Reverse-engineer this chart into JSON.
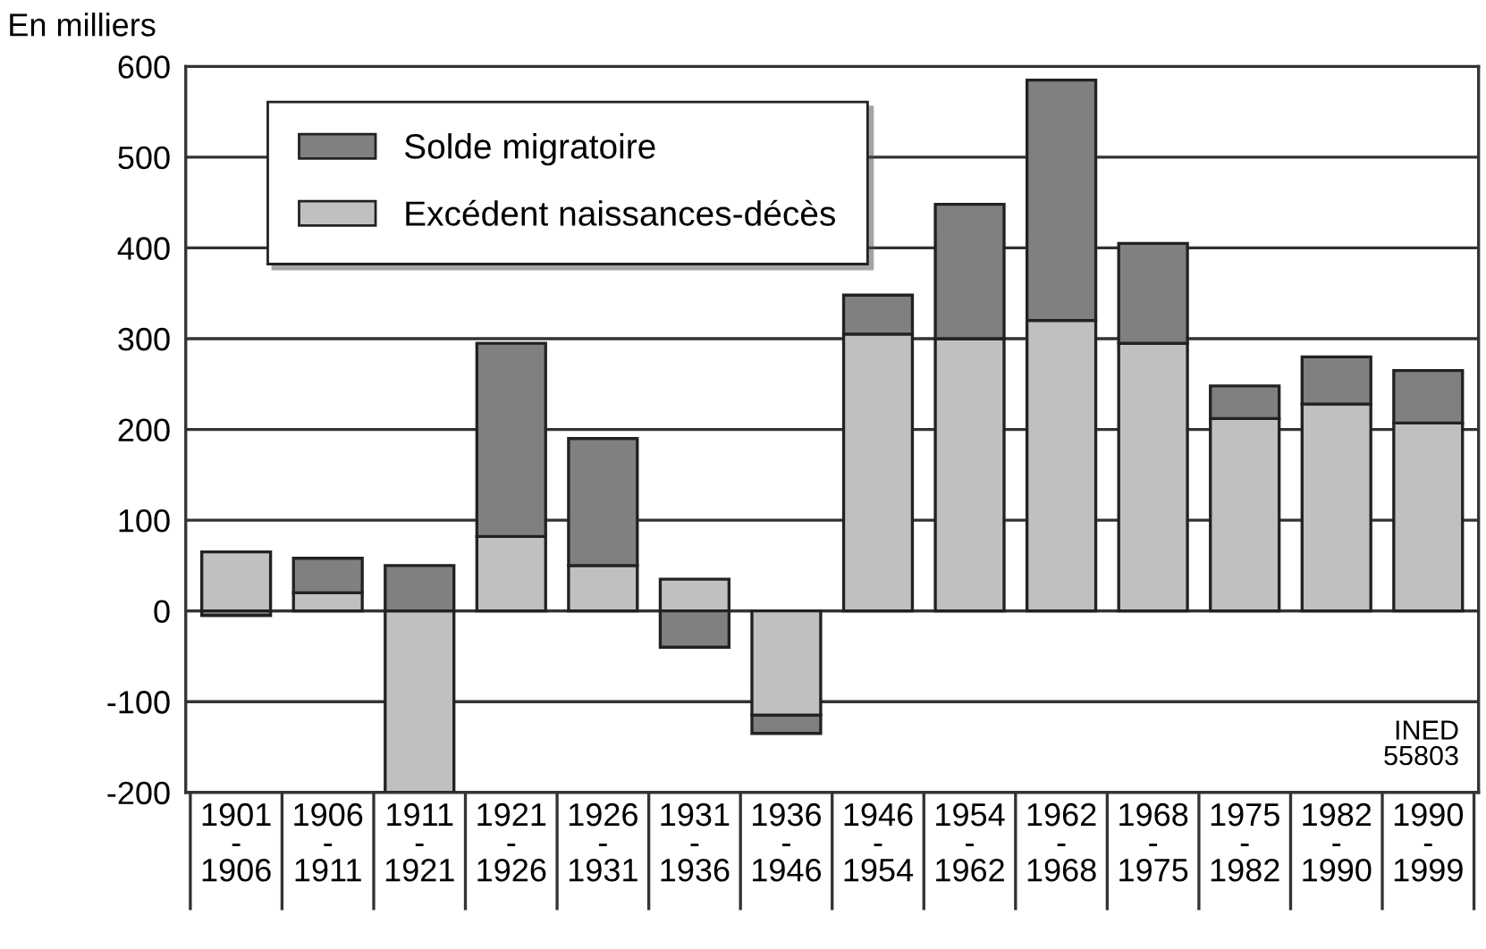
{
  "chart_data": {
    "type": "bar",
    "stacked": true,
    "ylabel": "En milliers",
    "categories": [
      "1901\n-\n1906",
      "1906\n-\n1911",
      "1911\n-\n1921",
      "1921\n-\n1926",
      "1926\n-\n1931",
      "1931\n-\n1936",
      "1936\n-\n1946",
      "1946\n-\n1954",
      "1954\n-\n1962",
      "1962\n-\n1968",
      "1968\n-\n1975",
      "1975\n-\n1982",
      "1982\n-\n1990",
      "1990\n-\n1999"
    ],
    "series": [
      {
        "name": "Excédent naissances-décès",
        "color": "#c0c0c0",
        "values": [
          65,
          20,
          -200,
          82,
          50,
          35,
          -115,
          305,
          300,
          320,
          295,
          212,
          228,
          207
        ]
      },
      {
        "name": "Solde migratoire",
        "color": "#808080",
        "values": [
          -5,
          38,
          50,
          213,
          140,
          -40,
          -20,
          43,
          148,
          265,
          110,
          36,
          52,
          58
        ]
      }
    ],
    "ylim": [
      -200,
      600
    ],
    "yticks": [
      {
        "value": -200,
        "label": "-200"
      },
      {
        "value": -100,
        "label": "-100"
      },
      0,
      100,
      200,
      300,
      400,
      500,
      600
    ],
    "grid": "y",
    "legend": "top left",
    "annotations": [
      "INED\n55803"
    ]
  }
}
